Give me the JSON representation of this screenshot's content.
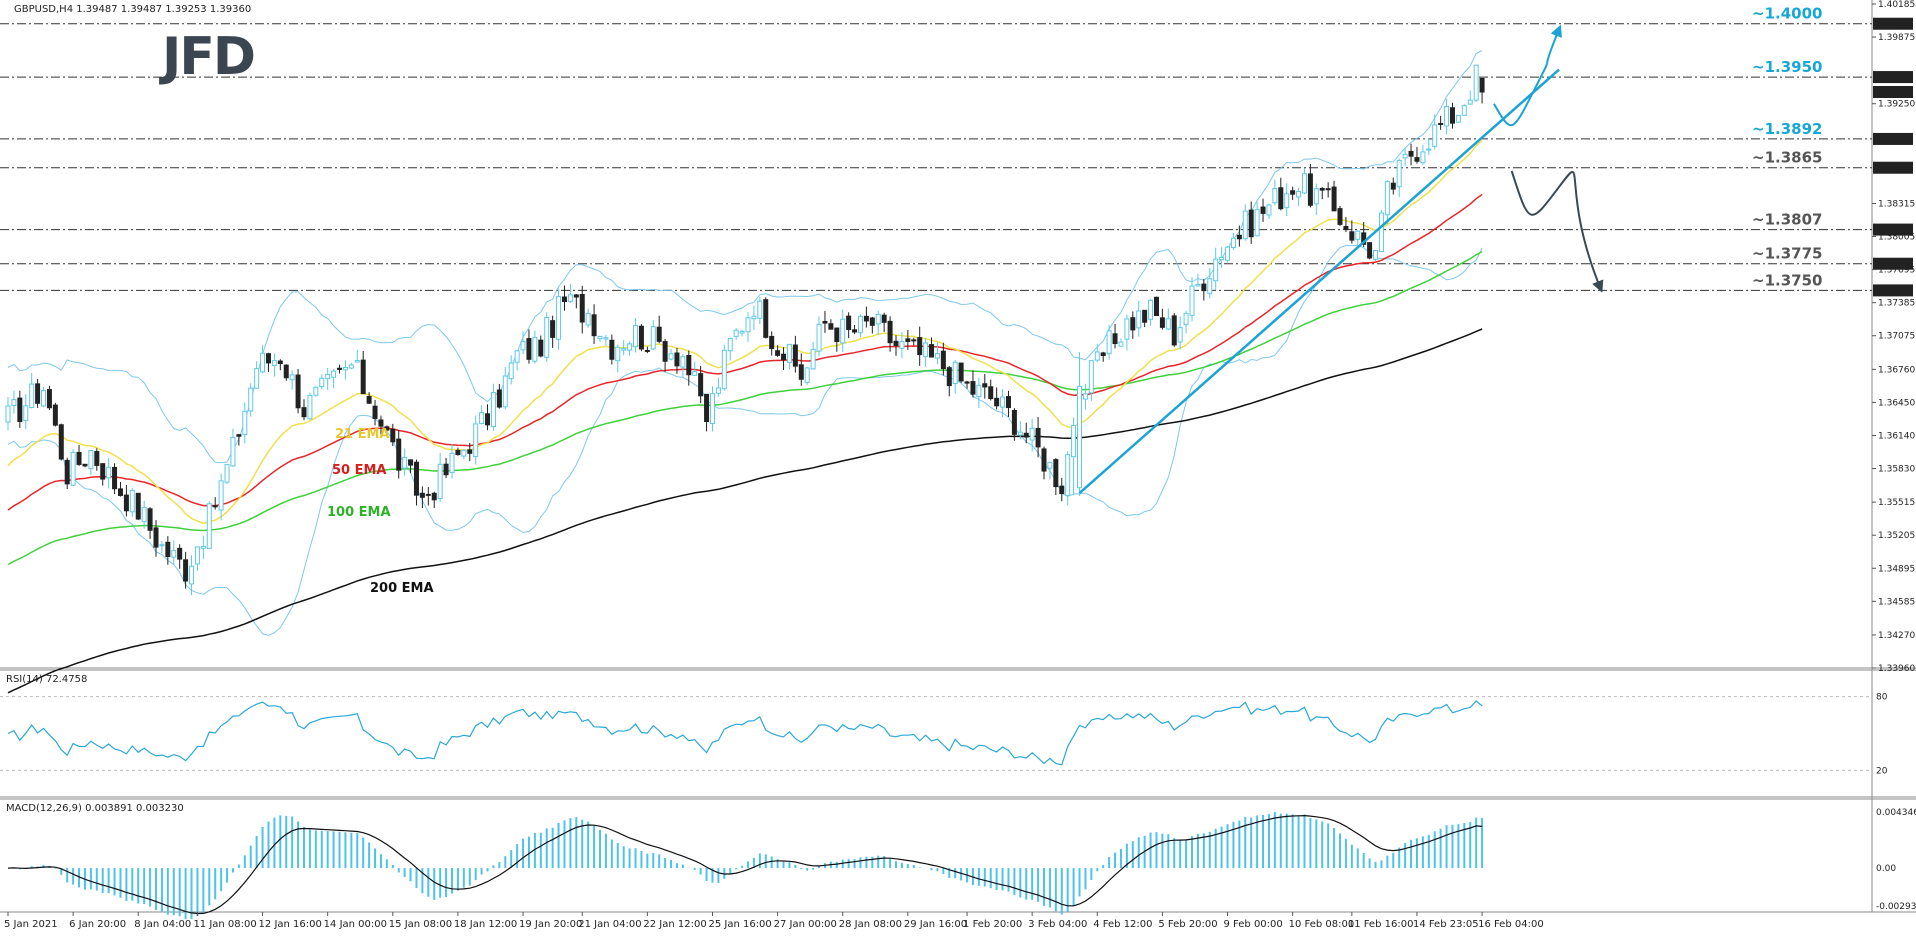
{
  "header": {
    "symbol_line": "GBPUSD,H4  1.39487 1.39487 1.39253 1.39360",
    "logo": "JFD"
  },
  "colors": {
    "bull": "#5ec8e8",
    "bear": "#222222",
    "ema21": "#f0e04a",
    "ema50": "#e8252a",
    "ema100": "#3fd13a",
    "ema200": "#111111",
    "bands": "#7fc8ec",
    "trend": "#1aa3d4",
    "level_blue": "#16a7d8",
    "level_gray": "#555555",
    "rsi": "#2aa8d8",
    "macd_hist": "#4ec2ea",
    "macd_signal": "#111111"
  },
  "labels": {
    "ema21": "21 EMA",
    "ema50": "50 EMA",
    "ema100": "100 EMA",
    "ema200": "200 EMA"
  },
  "levels": [
    {
      "value": 1.4,
      "text": "~1.4000",
      "tag": "1.40000",
      "color": "blue"
    },
    {
      "value": 1.395,
      "text": "~1.3950",
      "tag": "1.39500",
      "color": "blue"
    },
    {
      "value": 1.3892,
      "text": "~1.3892",
      "tag": "1.38920",
      "color": "blue"
    },
    {
      "value": 1.3865,
      "text": "~1.3865",
      "tag": "1.38650",
      "color": "gray"
    },
    {
      "value": 1.3807,
      "text": "~1.3807",
      "tag": "1.38070",
      "color": "gray"
    },
    {
      "value": 1.3775,
      "text": "~1.3775",
      "tag": "1.37750",
      "color": "gray"
    },
    {
      "value": 1.375,
      "text": "~1.3750",
      "tag": "1.37500",
      "color": "gray"
    }
  ],
  "current_price_tag": "1.39360",
  "chart_data": {
    "type": "line",
    "title": "GBPUSD,H4",
    "ylim": [
      1.3396,
      1.40185
    ],
    "y_ticks": [
      "1.40185",
      "1.39875",
      "1.39250",
      "1.38315",
      "1.38005",
      "1.37695",
      "1.37385",
      "1.37075",
      "1.36760",
      "1.36450",
      "1.36140",
      "1.35830",
      "1.35515",
      "1.35205",
      "1.34895",
      "1.34585",
      "1.34270",
      "1.33960"
    ],
    "x_labels": [
      "5 Jan 2021",
      "6 Jan 20:00",
      "8 Jan 04:00",
      "11 Jan 08:00",
      "12 Jan 16:00",
      "14 Jan 00:00",
      "15 Jan 08:00",
      "18 Jan 12:00",
      "19 Jan 20:00",
      "21 Jan 04:00",
      "22 Jan 12:00",
      "25 Jan 16:00",
      "27 Jan 00:00",
      "28 Jan 08:00",
      "29 Jan 16:00",
      "1 Feb 20:00",
      "3 Feb 04:00",
      "4 Feb 12:00",
      "5 Feb 20:00",
      "9 Feb 00:00",
      "10 Feb 08:00",
      "11 Feb 16:00",
      "14 Feb 23:05",
      "16 Feb 04:00"
    ],
    "close_anchors": [
      [
        0,
        1.363
      ],
      [
        6,
        1.366
      ],
      [
        10,
        1.358
      ],
      [
        14,
        1.36
      ],
      [
        18,
        1.357
      ],
      [
        22,
        1.3545
      ],
      [
        26,
        1.351
      ],
      [
        30,
        1.349
      ],
      [
        34,
        1.3535
      ],
      [
        38,
        1.36
      ],
      [
        42,
        1.368
      ],
      [
        46,
        1.369
      ],
      [
        50,
        1.364
      ],
      [
        54,
        1.366
      ],
      [
        58,
        1.368
      ],
      [
        62,
        1.364
      ],
      [
        66,
        1.359
      ],
      [
        70,
        1.3555
      ],
      [
        74,
        1.358
      ],
      [
        78,
        1.361
      ],
      [
        82,
        1.364
      ],
      [
        86,
        1.369
      ],
      [
        90,
        1.37
      ],
      [
        94,
        1.374
      ],
      [
        98,
        1.373
      ],
      [
        102,
        1.37
      ],
      [
        106,
        1.371
      ],
      [
        110,
        1.37
      ],
      [
        114,
        1.369
      ],
      [
        118,
        1.363
      ],
      [
        122,
        1.37
      ],
      [
        126,
        1.374
      ],
      [
        130,
        1.37
      ],
      [
        134,
        1.367
      ],
      [
        138,
        1.372
      ],
      [
        142,
        1.371
      ],
      [
        146,
        1.372
      ],
      [
        150,
        1.37
      ],
      [
        154,
        1.369
      ],
      [
        158,
        1.368
      ],
      [
        162,
        1.366
      ],
      [
        166,
        1.365
      ],
      [
        170,
        1.363
      ],
      [
        174,
        1.36
      ],
      [
        178,
        1.357
      ],
      [
        181,
        1.365
      ],
      [
        185,
        1.369
      ],
      [
        189,
        1.372
      ],
      [
        193,
        1.373
      ],
      [
        197,
        1.371
      ],
      [
        201,
        1.3755
      ],
      [
        205,
        1.379
      ],
      [
        209,
        1.381
      ],
      [
        213,
        1.383
      ],
      [
        217,
        1.385
      ],
      [
        221,
        1.384
      ],
      [
        225,
        1.382
      ],
      [
        228,
        1.38
      ],
      [
        231,
        1.3785
      ],
      [
        233,
        1.384
      ],
      [
        237,
        1.388
      ],
      [
        241,
        1.39
      ],
      [
        245,
        1.392
      ],
      [
        248,
        1.395
      ],
      [
        249,
        1.3936
      ]
    ],
    "rsi": {
      "label": "RSI(14) 72.4758",
      "period": 14,
      "last": 72.4758,
      "levels": [
        80,
        20
      ],
      "ylim": [
        0,
        100
      ]
    },
    "macd": {
      "label": "MACD(12,26,9) 0.003891 0.003230",
      "params": [
        12,
        26,
        9
      ],
      "main": 0.003891,
      "signal": 0.00323,
      "ylim": [
        -0.002937,
        0.004346
      ],
      "ticks": [
        "0.004346",
        "0.00",
        "-0.002937"
      ]
    },
    "trendline": {
      "from": [
        181,
        1.356
      ],
      "to": [
        262,
        1.3957
      ]
    },
    "projections": [
      {
        "direction": "up",
        "points": [
          [
            251,
            1.3925
          ],
          [
            254,
            1.3896
          ],
          [
            258,
            1.394
          ],
          [
            262,
            1.3995
          ]
        ]
      },
      {
        "direction": "down",
        "points": [
          [
            254,
            1.3862
          ],
          [
            257,
            1.381
          ],
          [
            262,
            1.3847
          ],
          [
            269,
            1.3752
          ]
        ]
      }
    ]
  }
}
